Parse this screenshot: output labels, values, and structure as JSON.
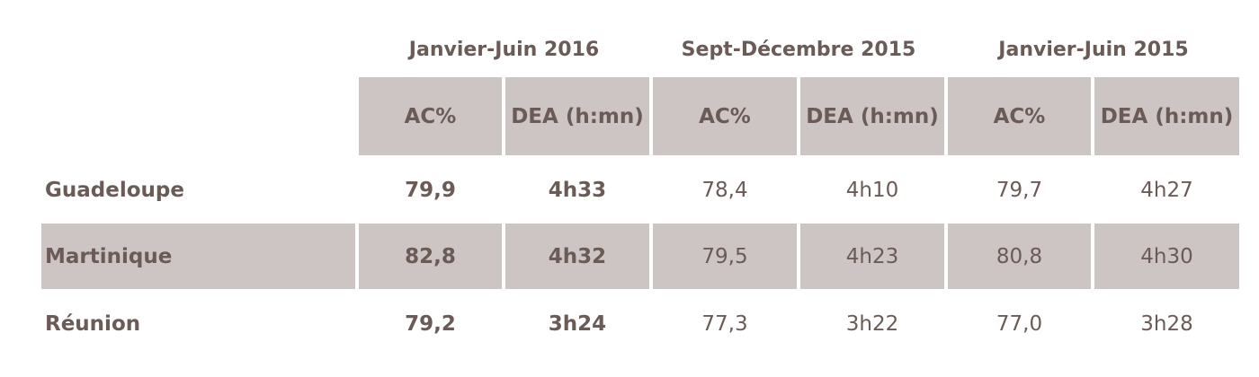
{
  "colors": {
    "header_fill": "#cdc4c4",
    "text": "#6b5b57"
  },
  "periods": [
    "Janvier-Juin 2016",
    "Sept-Décembre 2015",
    "Janvier-Juin 2015"
  ],
  "columns": [
    "AC%",
    "DEA (h:mn)",
    "AC%",
    "DEA (h:mn)",
    "AC%",
    "DEA (h:mn)"
  ],
  "rows": [
    {
      "region": "Guadeloupe",
      "values": [
        "79,9",
        "4h33",
        "78,4",
        "4h10",
        "79,7",
        "4h27"
      ]
    },
    {
      "region": "Martinique",
      "values": [
        "82,8",
        "4h32",
        "79,5",
        "4h23",
        "80,8",
        "4h30"
      ]
    },
    {
      "region": "Réunion",
      "values": [
        "79,2",
        "3h24",
        "77,3",
        "3h22",
        "77,0",
        "3h28"
      ]
    }
  ]
}
